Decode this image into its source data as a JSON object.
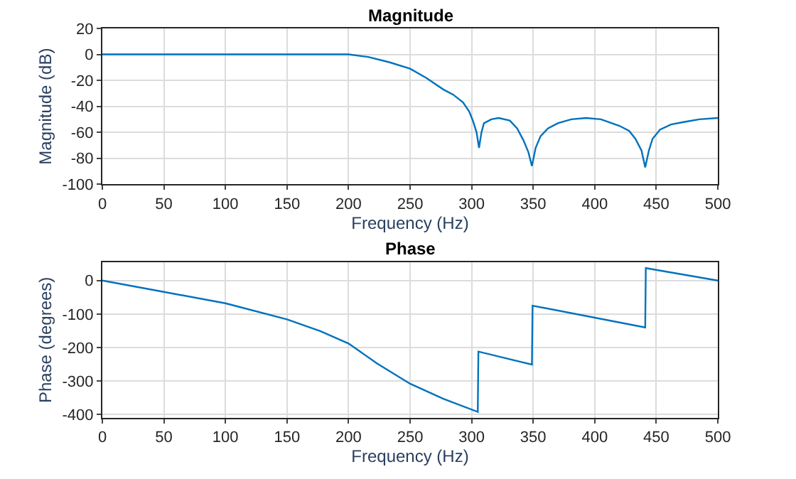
{
  "chart_data": [
    {
      "type": "line",
      "title": "Magnitude",
      "xlabel": "Frequency (Hz)",
      "ylabel": "Magnitude (dB)",
      "xlim": [
        0,
        500
      ],
      "xticks": [
        0,
        50,
        100,
        150,
        200,
        250,
        300,
        350,
        400,
        450,
        500
      ],
      "ylim": [
        -100,
        20
      ],
      "yticks": [
        -100,
        -80,
        -60,
        -40,
        -20,
        0,
        20
      ],
      "grid": true,
      "series": [
        {
          "color": "#0072bd",
          "x": [
            0,
            50,
            100,
            150,
            200,
            216,
            233,
            250,
            263,
            277,
            285,
            293,
            298,
            301,
            304,
            306,
            308,
            310,
            316,
            322,
            331,
            337,
            342,
            346,
            349,
            352,
            356,
            362,
            370,
            381,
            393,
            405,
            420,
            428,
            433,
            438,
            441,
            444,
            447,
            453,
            462,
            473,
            485,
            500
          ],
          "values": [
            0,
            0,
            0,
            0,
            0,
            -2,
            -6,
            -11,
            -18,
            -27,
            -31,
            -37,
            -44,
            -51,
            -60,
            -72,
            -60,
            -53,
            -50,
            -49,
            -51,
            -57,
            -66,
            -75,
            -86,
            -72,
            -63,
            -57,
            -53,
            -50,
            -49,
            -50,
            -55,
            -59,
            -65,
            -74,
            -87,
            -74,
            -65,
            -58,
            -54,
            -52,
            -50,
            -49
          ]
        }
      ]
    },
    {
      "type": "line",
      "title": "Phase",
      "xlabel": "Frequency (Hz)",
      "ylabel": "Phase (degrees)",
      "xlim": [
        0,
        500
      ],
      "xticks": [
        0,
        50,
        100,
        150,
        200,
        250,
        300,
        350,
        400,
        450,
        500
      ],
      "ylim": [
        -410,
        55
      ],
      "yticks": [
        -400,
        -300,
        -200,
        -100,
        0
      ],
      "grid": true,
      "series": [
        {
          "color": "#0072bd",
          "x": [
            0,
            50,
            100,
            150,
            177,
            200,
            223,
            250,
            277,
            305,
            305.5,
            349,
            349.5,
            441,
            441.5,
            500
          ],
          "values": [
            0,
            -34,
            -68,
            -116,
            -151,
            -188,
            -247,
            -308,
            -353,
            -392,
            -212,
            -251,
            -75,
            -140,
            37,
            0
          ]
        }
      ]
    }
  ]
}
